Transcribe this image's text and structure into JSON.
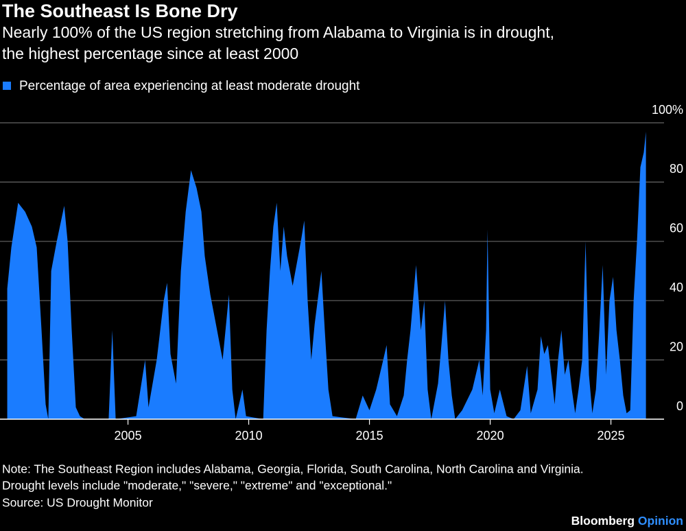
{
  "chart_data": {
    "type": "area",
    "title": "The Southeast Is Bone Dry",
    "subtitle": [
      "Nearly 100% of the US region stretching from Alabama to Virginia is in drought,",
      "the highest percentage since at least 2000"
    ],
    "x": [
      2000.0,
      2000.17,
      2000.45,
      2000.74,
      2001.02,
      2001.22,
      2001.42,
      2001.59,
      2001.7,
      2001.82,
      2002.05,
      2002.36,
      2002.5,
      2002.67,
      2002.84,
      2003.01,
      2003.21,
      2004.2,
      2004.35,
      2004.49,
      2005.34,
      2005.71,
      2005.85,
      2006.19,
      2006.48,
      2006.62,
      2006.76,
      2006.99,
      2007.19,
      2007.39,
      2007.61,
      2007.84,
      2008.04,
      2008.18,
      2008.41,
      2008.69,
      2008.92,
      2009.18,
      2009.32,
      2009.46,
      2009.74,
      2009.89,
      2010.6,
      2010.74,
      2010.88,
      2011.02,
      2011.16,
      2011.31,
      2011.45,
      2011.59,
      2011.82,
      2012.16,
      2012.3,
      2012.44,
      2012.59,
      2012.73,
      2013.01,
      2013.15,
      2013.3,
      2013.47,
      2014.43,
      2014.72,
      2015.0,
      2015.28,
      2015.57,
      2015.71,
      2015.85,
      2016.14,
      2016.42,
      2016.56,
      2016.7,
      2016.93,
      2017.13,
      2017.27,
      2017.41,
      2017.56,
      2017.84,
      2017.98,
      2018.13,
      2018.27,
      2018.41,
      2018.55,
      2018.84,
      2019.26,
      2019.55,
      2019.69,
      2019.83,
      2019.89,
      2020.0,
      2020.17,
      2020.4,
      2020.68,
      2020.97,
      2021.25,
      2021.53,
      2021.68,
      2021.96,
      2022.1,
      2022.24,
      2022.39,
      2022.53,
      2022.67,
      2022.81,
      2022.95,
      2023.09,
      2023.24,
      2023.38,
      2023.52,
      2023.66,
      2023.81,
      2023.95,
      2024.09,
      2024.23,
      2024.38,
      2024.52,
      2024.66,
      2024.8,
      2024.94,
      2025.09,
      2025.23,
      2025.37,
      2025.51,
      2025.65,
      2025.8,
      2025.94,
      2026.08,
      2026.22,
      2026.36,
      2026.45
    ],
    "series": [
      {
        "name": "Percentage of area experiencing at least moderate drought",
        "color": "#1a7cff",
        "values": [
          44,
          58,
          73,
          70,
          65,
          58,
          30,
          5,
          0,
          50,
          60,
          72,
          60,
          30,
          4,
          1,
          0,
          0,
          30,
          0,
          1,
          20,
          4,
          20,
          40,
          46,
          22,
          12,
          50,
          70,
          84,
          78,
          70,
          55,
          42,
          30,
          20,
          42,
          10,
          0,
          10,
          1,
          0,
          30,
          50,
          65,
          73,
          50,
          65,
          55,
          45,
          60,
          67,
          40,
          20,
          32,
          50,
          30,
          10,
          1,
          0,
          8,
          3,
          10,
          20,
          25,
          5,
          1,
          8,
          20,
          30,
          52,
          30,
          40,
          10,
          0,
          12,
          25,
          40,
          20,
          8,
          0,
          3,
          10,
          20,
          8,
          30,
          64,
          10,
          2,
          10,
          1,
          0,
          3,
          18,
          2,
          10,
          28,
          22,
          25,
          15,
          5,
          20,
          30,
          15,
          20,
          10,
          2,
          10,
          20,
          60,
          15,
          2,
          10,
          30,
          52,
          15,
          40,
          48,
          30,
          20,
          8,
          2,
          3,
          40,
          60,
          85,
          90,
          97
        ]
      }
    ],
    "xlim": [
      1999.7,
      2027.2
    ],
    "xticks": [
      2005,
      2010,
      2015,
      2020,
      2025
    ],
    "ylim": [
      0,
      100
    ],
    "yticks": [
      0,
      20,
      40,
      60,
      80,
      {
        "value": 100,
        "label": "100%"
      }
    ],
    "grid": true,
    "notes": [
      "Note: The Southeast Region includes Alabama, Georgia, Florida, South Carolina, North Carolina and Virginia.",
      "Drought levels include \"moderate,\" \"severe,\" \"extreme\" and \"exceptional.\""
    ],
    "source": "Source: US Drought Monitor",
    "brand": [
      "Bloomberg",
      "Opinion"
    ]
  }
}
